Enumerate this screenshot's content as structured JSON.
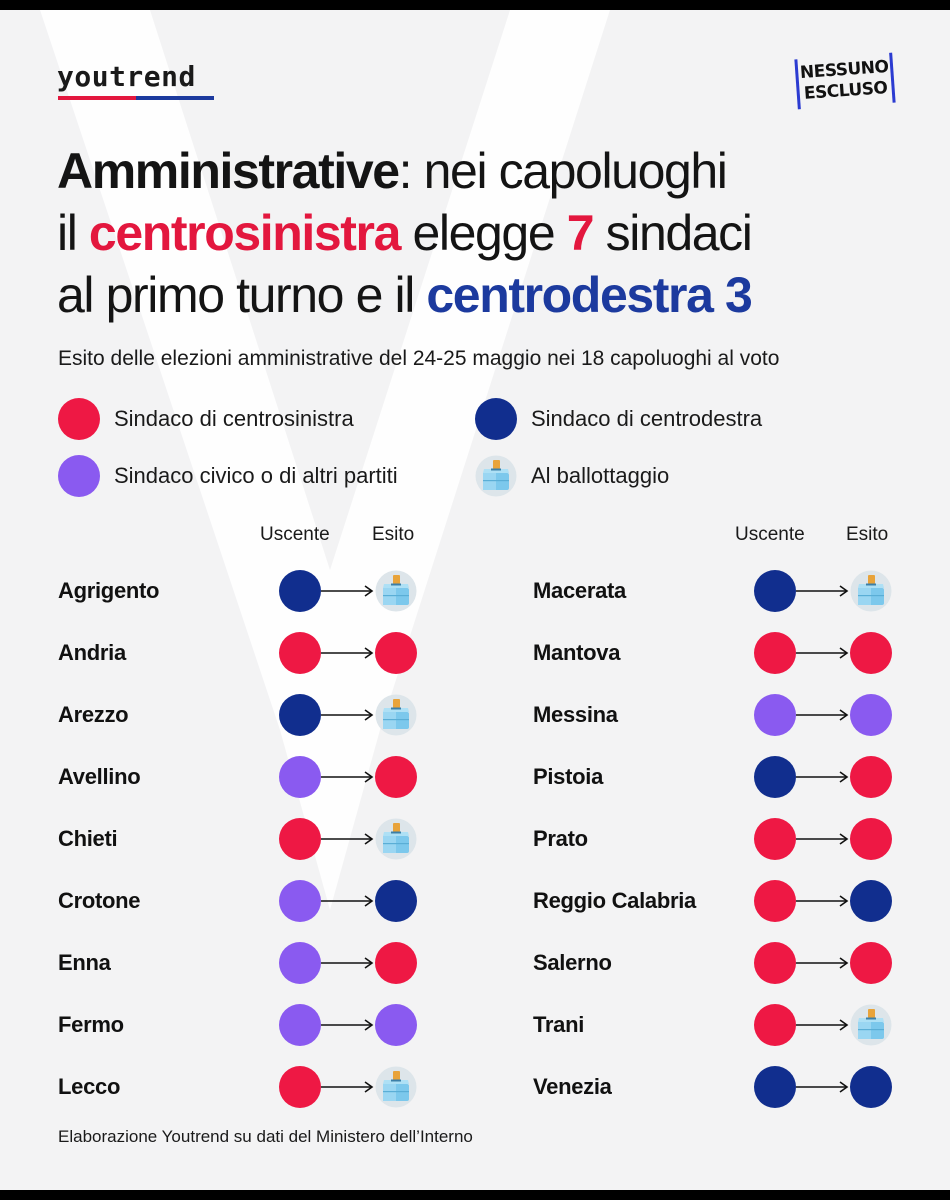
{
  "brand": {
    "logo": "youtrend",
    "logo_underline_colors": [
      "#e3173e",
      "#1c3a9e"
    ],
    "badge_line1": "NESSUNO",
    "badge_line2": "ESCLUSO"
  },
  "headline": {
    "line1_bold": "Amministrative",
    "line1_rest": ": nei capoluoghi",
    "line2_pre": "il ",
    "line2_red": "centrosinistra",
    "line2_mid": " elegge ",
    "line2_num": "7",
    "line2_post": " sindaci",
    "line3_pre": "al primo turno e il ",
    "line3_blue": "centrodestra 3"
  },
  "subtitle": "Esito delle elezioni amministrative del 24-25 maggio nei 18 capoluoghi al voto",
  "colors": {
    "cs": "#ee1844",
    "cd": "#112e8e",
    "civ": "#8a5af0",
    "ballot": "ballot-box-icon"
  },
  "legend": [
    {
      "key": "cs",
      "label": "Sindaco di centrosinistra"
    },
    {
      "key": "cd",
      "label": "Sindaco di centrodestra"
    },
    {
      "key": "civ",
      "label": "Sindaco civico o di altri partiti"
    },
    {
      "key": "ballot",
      "label": "Al ballottaggio"
    }
  ],
  "columns": {
    "uscente": "Uscente",
    "esito": "Esito"
  },
  "cities_left": [
    {
      "name": "Agrigento",
      "uscente": "cd",
      "esito": "ballot"
    },
    {
      "name": "Andria",
      "uscente": "cs",
      "esito": "cs"
    },
    {
      "name": "Arezzo",
      "uscente": "cd",
      "esito": "ballot"
    },
    {
      "name": "Avellino",
      "uscente": "civ",
      "esito": "cs"
    },
    {
      "name": "Chieti",
      "uscente": "cs",
      "esito": "ballot"
    },
    {
      "name": "Crotone",
      "uscente": "civ",
      "esito": "cd"
    },
    {
      "name": "Enna",
      "uscente": "civ",
      "esito": "cs"
    },
    {
      "name": "Fermo",
      "uscente": "civ",
      "esito": "civ"
    },
    {
      "name": "Lecco",
      "uscente": "cs",
      "esito": "ballot"
    }
  ],
  "cities_right": [
    {
      "name": "Macerata",
      "uscente": "cd",
      "esito": "ballot"
    },
    {
      "name": "Mantova",
      "uscente": "cs",
      "esito": "cs"
    },
    {
      "name": "Messina",
      "uscente": "civ",
      "esito": "civ"
    },
    {
      "name": "Pistoia",
      "uscente": "cd",
      "esito": "cs"
    },
    {
      "name": "Prato",
      "uscente": "cs",
      "esito": "cs"
    },
    {
      "name": "Reggio Calabria",
      "uscente": "cs",
      "esito": "cd"
    },
    {
      "name": "Salerno",
      "uscente": "cs",
      "esito": "cs"
    },
    {
      "name": "Trani",
      "uscente": "cs",
      "esito": "ballot"
    },
    {
      "name": "Venezia",
      "uscente": "cd",
      "esito": "cd"
    }
  ],
  "footer": "Elaborazione Youtrend su dati del Ministero dell’Interno"
}
